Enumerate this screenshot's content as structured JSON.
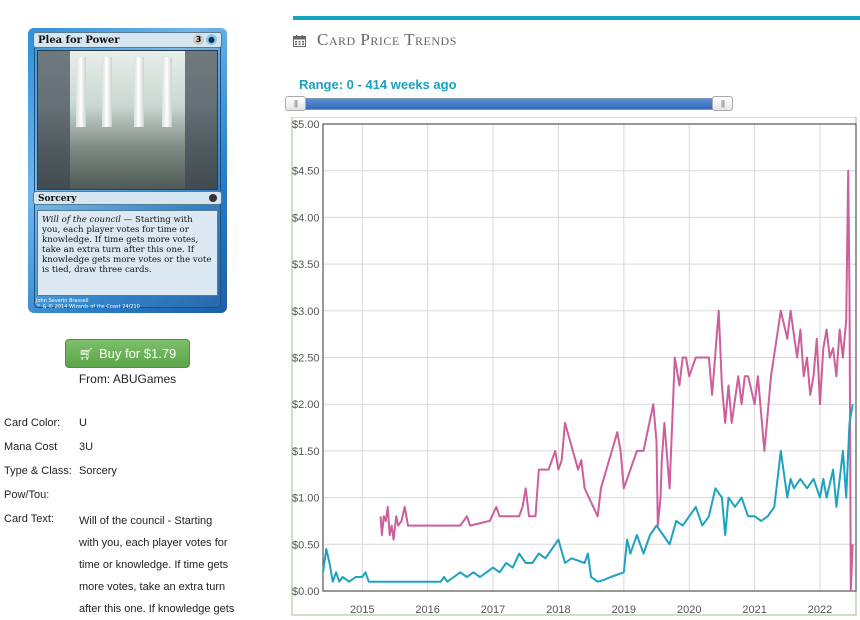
{
  "card_image": {
    "name": "Plea for Power",
    "cost_generic": "3",
    "cost_colored": "U",
    "type_line": "Sorcery",
    "rules_keyword": "Will of the council",
    "rules_text": " — Starting with you, each player votes for time or knowledge. If time gets more votes, take an extra turn after this one. If knowledge gets more votes or the vote is tied, draw three cards.",
    "artist": "John Severin Brassell",
    "copyright": "™ & © 2014 Wizards of the Coast 24/210"
  },
  "buy": {
    "label": "Buy for $1.79",
    "from": "From: ABUGames"
  },
  "details": {
    "color_label": "Card Color:",
    "color_value": "U",
    "mana_label": "Mana Cost",
    "mana_value": "3U",
    "type_label": "Type & Class:",
    "type_value": "Sorcery",
    "pow_label": "Pow/Tou:",
    "pow_value": "",
    "text_label": "Card Text:",
    "text_lines": [
      "Will of the council - Starting",
      "with you, each player votes for",
      "time or knowledge. If time gets",
      "more votes, take an extra turn",
      "after this one. If knowledge gets"
    ]
  },
  "section_title": "Card Price Trends",
  "range_label": "Range: 0 - 414 weeks ago",
  "colors": {
    "series_pink": "#cc5f9c",
    "series_teal": "#1ea3bf",
    "accent": "#12a5c2"
  },
  "chart_data": {
    "type": "line",
    "title": "",
    "xlabel": "",
    "ylabel": "",
    "xlim": [
      2014.4,
      2022.55
    ],
    "ylim": [
      0,
      5
    ],
    "grid": true,
    "x_ticks": [
      "2015",
      "2016",
      "2017",
      "2018",
      "2019",
      "2020",
      "2021",
      "2022"
    ],
    "y_ticks": [
      "$0.00",
      "$0.50",
      "$1.00",
      "$1.50",
      "$2.00",
      "$2.50",
      "$3.00",
      "$3.50",
      "$4.00",
      "$4.50",
      "$5.00"
    ],
    "series": [
      {
        "x": [
          2015.28,
          2015.3,
          2015.33,
          2015.36,
          2015.39,
          2015.42,
          2015.45,
          2015.48,
          2015.52,
          2015.55,
          2015.6,
          2015.65,
          2015.7,
          2016.0,
          2016.5,
          2016.6,
          2016.65,
          2016.95,
          2017.05,
          2017.1,
          2017.4,
          2017.45,
          2017.5,
          2017.55,
          2017.65,
          2017.7,
          2017.85,
          2017.95,
          2018.0,
          2018.05,
          2018.1,
          2018.3,
          2018.35,
          2018.4,
          2018.6,
          2018.65,
          2018.9,
          2018.95,
          2019.0,
          2019.2,
          2019.25,
          2019.3,
          2019.45,
          2019.5,
          2019.52,
          2019.56,
          2019.58,
          2019.62,
          2019.7,
          2019.78,
          2019.85,
          2019.9,
          2019.95,
          2020.0,
          2020.1,
          2020.3,
          2020.35,
          2020.45,
          2020.5,
          2020.55,
          2020.6,
          2020.65,
          2020.75,
          2020.8,
          2020.85,
          2020.9,
          2021.0,
          2021.05,
          2021.15,
          2021.25,
          2021.4,
          2021.5,
          2021.55,
          2021.65,
          2021.7,
          2021.75,
          2021.8,
          2021.85,
          2021.9,
          2021.95,
          2022.0,
          2022.05,
          2022.1,
          2022.15,
          2022.2,
          2022.25,
          2022.3,
          2022.35,
          2022.4,
          2022.43,
          2022.45,
          2022.47,
          2022.5
        ],
        "values": [
          0.8,
          0.6,
          0.8,
          0.75,
          0.9,
          0.6,
          0.7,
          0.55,
          0.8,
          0.7,
          0.75,
          0.9,
          0.7,
          0.7,
          0.7,
          0.8,
          0.7,
          0.75,
          0.9,
          0.8,
          0.8,
          0.9,
          1.1,
          0.8,
          0.8,
          1.3,
          1.3,
          1.5,
          1.3,
          1.4,
          1.8,
          1.3,
          1.4,
          1.1,
          0.8,
          1.1,
          1.7,
          1.5,
          1.1,
          1.5,
          1.5,
          1.5,
          2.0,
          1.6,
          0.7,
          1.0,
          1.4,
          1.8,
          1.1,
          2.5,
          2.2,
          2.5,
          2.5,
          2.3,
          2.5,
          2.5,
          2.1,
          3.0,
          2.2,
          1.8,
          2.2,
          1.8,
          2.3,
          2.0,
          2.3,
          2.3,
          2.0,
          2.3,
          1.5,
          2.3,
          3.0,
          2.7,
          3.0,
          2.5,
          2.8,
          2.3,
          2.5,
          2.1,
          2.3,
          2.7,
          2.0,
          2.6,
          2.8,
          2.5,
          2.6,
          2.3,
          2.8,
          2.5,
          2.9,
          4.5,
          3.2,
          0.0,
          0.5
        ]
      },
      {
        "x": [
          2014.4,
          2014.45,
          2014.5,
          2014.55,
          2014.6,
          2014.65,
          2014.7,
          2014.8,
          2014.9,
          2015.0,
          2015.05,
          2015.1,
          2015.2,
          2015.5,
          2016.0,
          2016.2,
          2016.25,
          2016.3,
          2016.4,
          2016.5,
          2016.6,
          2016.7,
          2016.8,
          2016.9,
          2017.0,
          2017.1,
          2017.2,
          2017.3,
          2017.4,
          2017.5,
          2017.6,
          2017.7,
          2017.8,
          2017.9,
          2018.0,
          2018.1,
          2018.2,
          2018.4,
          2018.45,
          2018.5,
          2018.6,
          2018.7,
          2018.8,
          2019.0,
          2019.05,
          2019.1,
          2019.2,
          2019.3,
          2019.4,
          2019.5,
          2019.6,
          2019.7,
          2019.8,
          2019.9,
          2020.0,
          2020.1,
          2020.2,
          2020.3,
          2020.4,
          2020.5,
          2020.55,
          2020.6,
          2020.7,
          2020.8,
          2020.9,
          2021.0,
          2021.1,
          2021.2,
          2021.3,
          2021.4,
          2021.5,
          2021.55,
          2021.6,
          2021.7,
          2021.8,
          2021.9,
          2022.0,
          2022.05,
          2022.1,
          2022.2,
          2022.25,
          2022.3,
          2022.35,
          2022.4,
          2022.45,
          2022.5
        ],
        "values": [
          0.2,
          0.45,
          0.3,
          0.1,
          0.2,
          0.1,
          0.15,
          0.1,
          0.15,
          0.15,
          0.2,
          0.1,
          0.1,
          0.1,
          0.1,
          0.1,
          0.15,
          0.1,
          0.15,
          0.2,
          0.15,
          0.2,
          0.15,
          0.2,
          0.25,
          0.2,
          0.3,
          0.25,
          0.4,
          0.3,
          0.3,
          0.4,
          0.35,
          0.45,
          0.55,
          0.3,
          0.35,
          0.3,
          0.4,
          0.15,
          0.1,
          0.12,
          0.15,
          0.2,
          0.55,
          0.4,
          0.6,
          0.4,
          0.6,
          0.7,
          0.6,
          0.5,
          0.75,
          0.7,
          0.8,
          0.9,
          0.7,
          0.8,
          1.1,
          1.0,
          0.6,
          1.0,
          0.9,
          1.0,
          0.8,
          0.8,
          0.75,
          0.8,
          0.9,
          1.5,
          1.0,
          1.2,
          1.1,
          1.2,
          1.1,
          1.2,
          1.0,
          1.2,
          1.0,
          1.3,
          0.9,
          1.2,
          1.5,
          1.0,
          1.8,
          2.0
        ]
      }
    ]
  }
}
